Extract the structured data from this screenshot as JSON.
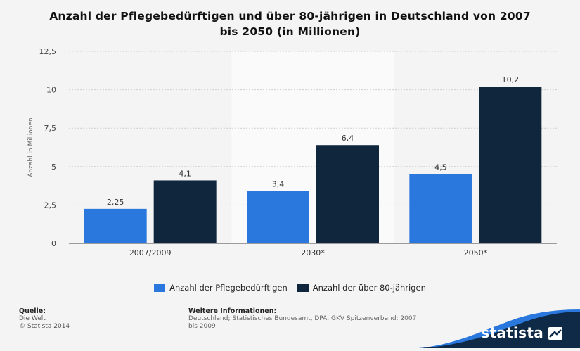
{
  "chart_data": {
    "type": "bar",
    "title_line1": "Anzahl der Pflegebedürftigen und über 80-jährigen in Deutschland von 2007",
    "title_line2": "bis 2050 (in Millionen)",
    "ylabel": "Anzahl in Millionen",
    "xlabel": "",
    "ylim": [
      0,
      12.5
    ],
    "yticks": [
      {
        "value": 0,
        "label": "0"
      },
      {
        "value": 2.5,
        "label": "2,5"
      },
      {
        "value": 5,
        "label": "5"
      },
      {
        "value": 7.5,
        "label": "7,5"
      },
      {
        "value": 10,
        "label": "10"
      },
      {
        "value": 12.5,
        "label": "12,5"
      }
    ],
    "categories": [
      "2007/2009",
      "2030*",
      "2050*"
    ],
    "series": [
      {
        "name": "Anzahl der Pflegebedürftigen",
        "color": "#2a77dd",
        "values": [
          2.25,
          3.4,
          4.5
        ],
        "labels": [
          "2,25",
          "3,4",
          "4,5"
        ]
      },
      {
        "name": "Anzahl der über 80-jährigen",
        "color": "#10263d",
        "values": [
          4.1,
          6.4,
          10.2
        ],
        "labels": [
          "4,1",
          "6,4",
          "10,2"
        ]
      }
    ],
    "grid": true,
    "legend": "bottom"
  },
  "footer": {
    "source_heading": "Quelle:",
    "source_line1": "Die Welt",
    "source_line2": "© Statista 2014",
    "info_heading": "Weitere Informationen:",
    "info_text": "Deutschland; Statistisches Bundesamt, DPA, GKV Spitzenverband; 2007 bis 2009"
  },
  "brand": {
    "name": "statista",
    "wave_color": "#0e2a47",
    "accent_color": "#2a77dd"
  }
}
